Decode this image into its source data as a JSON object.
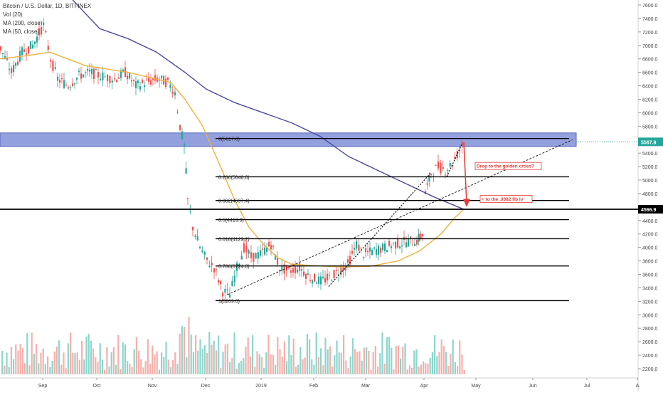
{
  "header": {
    "symbol_line": "Bitcoin / U.S. Dollar, 1D, BITFINEX",
    "indicators": [
      "Vol (20)",
      "MA (200, close)",
      "MA (50, close)"
    ]
  },
  "chart_data": {
    "type": "candlestick",
    "price_axis": {
      "min": 2050,
      "max": 7700,
      "ticks": [
        2200,
        2400,
        2600,
        2800,
        3000,
        3200,
        3400,
        3600,
        3800,
        4000,
        4200,
        4400,
        4600,
        4800,
        5000,
        5200,
        5400,
        5600,
        5800,
        6000,
        6200,
        6400,
        6600,
        6800,
        7000,
        7200,
        7400,
        7600
      ]
    },
    "x_axis": {
      "labels": [
        "Sep",
        "Oct",
        "Nov",
        "Dec",
        "2019",
        "Feb",
        "Mar",
        "Apr",
        "May",
        "Jun",
        "Jul",
        "A"
      ]
    },
    "current_price_label": "5567.8",
    "support_level": {
      "value": 4566.9,
      "label": "4566.9"
    },
    "resistance_zone": {
      "low": 5500,
      "high": 5700
    },
    "fib_levels": [
      {
        "label": "0(5617.0)",
        "value": 5617.0
      },
      {
        "label": "0.236(5048.8)",
        "value": 5048.8
      },
      {
        "label": "0.382(4697.4)",
        "value": 4697.4
      },
      {
        "label": "0.5(4413.3)",
        "value": 4413.3
      },
      {
        "label": "0.618(4129.2)",
        "value": 4129.2
      },
      {
        "label": "0.786(3724.8)",
        "value": 3724.8
      },
      {
        "label": "1(3209.6)",
        "value": 3209.6
      }
    ],
    "annotations": [
      {
        "text": "Drop to the golden cross?"
      },
      {
        "text": "+ to the .0382 fib lv"
      }
    ],
    "ma50_points": [
      [
        0,
        6800
      ],
      [
        40,
        6850
      ],
      [
        70,
        6900
      ],
      [
        120,
        6700
      ],
      [
        180,
        6600
      ],
      [
        240,
        6450
      ],
      [
        260,
        6200
      ],
      [
        285,
        5800
      ],
      [
        310,
        5200
      ],
      [
        330,
        4700
      ],
      [
        350,
        4300
      ],
      [
        370,
        4050
      ],
      [
        390,
        3850
      ],
      [
        410,
        3750
      ],
      [
        440,
        3730
      ],
      [
        480,
        3710
      ],
      [
        520,
        3720
      ],
      [
        560,
        3800
      ],
      [
        590,
        3950
      ],
      [
        620,
        4200
      ],
      [
        640,
        4450
      ],
      [
        652,
        4566
      ]
    ],
    "ma200_points": [
      [
        60,
        8500
      ],
      [
        100,
        7700
      ],
      [
        140,
        7250
      ],
      [
        180,
        7100
      ],
      [
        220,
        6900
      ],
      [
        260,
        6600
      ],
      [
        290,
        6350
      ],
      [
        330,
        6150
      ],
      [
        370,
        6000
      ],
      [
        410,
        5850
      ],
      [
        450,
        5650
      ],
      [
        490,
        5350
      ],
      [
        530,
        5150
      ],
      [
        570,
        4950
      ],
      [
        610,
        4750
      ],
      [
        652,
        4566
      ]
    ],
    "volume_axis_ticks": [
      2200,
      2400,
      2600,
      2800,
      3000
    ]
  }
}
